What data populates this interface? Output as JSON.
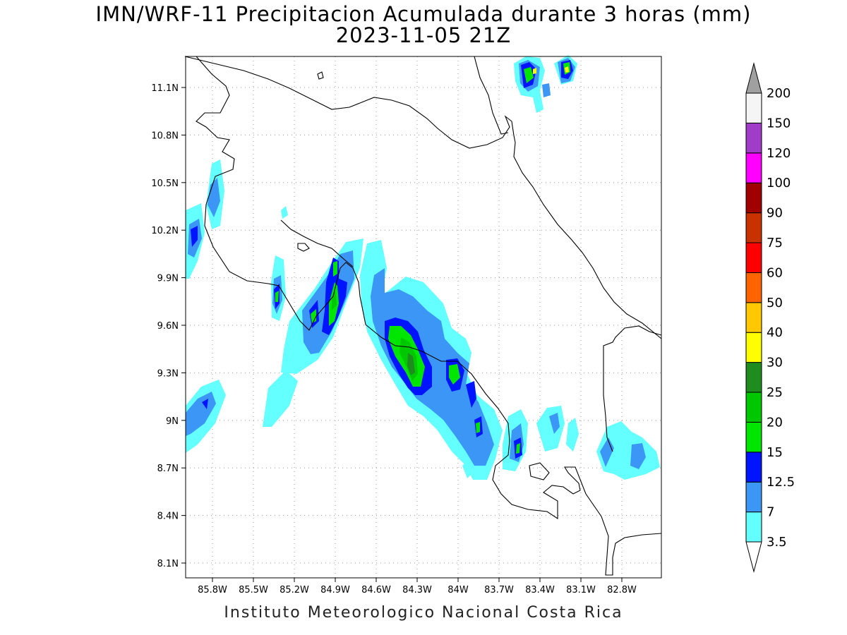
{
  "title_line1": "IMN/WRF-11 Precipitacion Acumulada durante 3 horas (mm)",
  "title_line2": "2023-11-05 21Z",
  "footer": "Instituto Meteorologico Nacional Costa Rica",
  "lat_ticks": [
    "11.1N",
    "10.8N",
    "10.5N",
    "10.2N",
    "9.9N",
    "9.6N",
    "9.3N",
    "9N",
    "8.7N",
    "8.4N",
    "8.1N"
  ],
  "lon_ticks": [
    "85.8W",
    "85.5W",
    "85.2W",
    "84.9W",
    "84.6W",
    "84.3W",
    "84W",
    "83.7W",
    "83.4W",
    "83.1W",
    "82.8W"
  ],
  "colorbar": {
    "labels": [
      "3.5",
      "7",
      "12.5",
      "15",
      "20",
      "25",
      "30",
      "40",
      "50",
      "60",
      "75",
      "90",
      "100",
      "120",
      "150",
      "200"
    ],
    "colors": [
      "#ffffff",
      "#64ffff",
      "#3c96f5",
      "#0014ff",
      "#00e600",
      "#00c800",
      "#1e8c1e",
      "#ffff00",
      "#ffc800",
      "#ff6400",
      "#ff0000",
      "#c83200",
      "#a00000",
      "#ff00ff",
      "#a03cc8",
      "#f5f5f5",
      "#a0a0a0"
    ]
  }
}
